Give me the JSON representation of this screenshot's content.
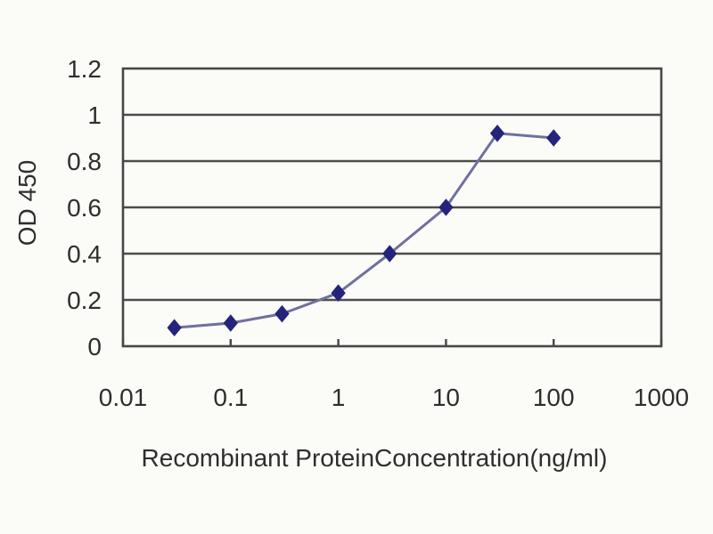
{
  "figure": {
    "background_color": "#fbfbf8",
    "axis_color": "#474747",
    "grid_color": "#4c4c4c",
    "line_color": "#70709f",
    "marker_color": "#24247b",
    "text_color": "#2e2e2e"
  },
  "chart_data": {
    "type": "line",
    "title": "",
    "xlabel": "Recombinant ProteinConcentration(ng/ml)",
    "ylabel": "OD 450",
    "x_scale": "log",
    "xlim": [
      0.01,
      1000
    ],
    "ylim": [
      0,
      1.2
    ],
    "x_tick_values": [
      0.01,
      0.1,
      1,
      10,
      100,
      1000
    ],
    "x_tick_labels": [
      "0.01",
      "0.1",
      "1",
      "10",
      "100",
      "1000"
    ],
    "y_tick_values": [
      0,
      0.2,
      0.4,
      0.6,
      0.8,
      1,
      1.2
    ],
    "y_tick_labels": [
      "0",
      "0.2",
      "0.4",
      "0.6",
      "0.8",
      "1",
      "1.2"
    ],
    "grid": "horizontal",
    "legend": "none",
    "series": [
      {
        "name": "OD 450",
        "marker": "diamond",
        "x": [
          0.03,
          0.1,
          0.3,
          1,
          3,
          10,
          30,
          100
        ],
        "y": [
          0.08,
          0.1,
          0.14,
          0.23,
          0.4,
          0.6,
          0.92,
          0.9
        ]
      }
    ]
  }
}
